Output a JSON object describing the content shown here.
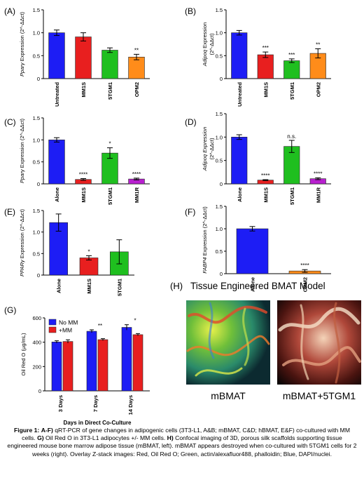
{
  "chart_data": [
    {
      "panel": "(A)",
      "type": "bar",
      "ylabel_pre": "",
      "ylabel_italic": "Pparγ",
      "ylabel_post": " Expression (2^-ΔΔct)",
      "ylim": [
        0,
        1.5
      ],
      "yticks": [
        0,
        0.5,
        1.0,
        1.5
      ],
      "categories": [
        "Untreated",
        "MM1S",
        "5TGM1",
        "OPM2"
      ],
      "values": [
        1.0,
        0.91,
        0.62,
        0.47
      ],
      "errors": [
        0.06,
        0.09,
        0.05,
        0.06
      ],
      "colors": [
        "#1d1df5",
        "#e81f1f",
        "#1fbf1f",
        "#ff8c1a"
      ],
      "significance": [
        "",
        "",
        "",
        "**"
      ]
    },
    {
      "panel": "(B)",
      "type": "bar",
      "ylabel_pre": "",
      "ylabel_italic": "Adipoq",
      "ylabel_post": " Expression",
      "ylabel2": "(2^-ΔΔct)",
      "ylim": [
        0,
        1.5
      ],
      "yticks": [
        0,
        0.5,
        1.0,
        1.5
      ],
      "categories": [
        "Untreated",
        "MM1S",
        "5TGM1",
        "OPM2"
      ],
      "values": [
        1.0,
        0.52,
        0.39,
        0.55
      ],
      "errors": [
        0.05,
        0.06,
        0.04,
        0.1
      ],
      "colors": [
        "#1d1df5",
        "#e81f1f",
        "#1fbf1f",
        "#ff8c1a"
      ],
      "significance": [
        "",
        "***",
        "***",
        "**"
      ]
    },
    {
      "panel": "(C)",
      "type": "bar",
      "ylabel_pre": "",
      "ylabel_italic": "Pparγ",
      "ylabel_post": " Expression (2^-ΔΔct)",
      "ylim": [
        0,
        1.5
      ],
      "yticks": [
        0,
        0.5,
        1.0,
        1.5
      ],
      "categories": [
        "Alone",
        "MM1S",
        "5TGM1",
        "MM1R"
      ],
      "values": [
        1.0,
        0.1,
        0.7,
        0.11
      ],
      "errors": [
        0.05,
        0.02,
        0.12,
        0.02
      ],
      "colors": [
        "#1d1df5",
        "#e81f1f",
        "#1fbf1f",
        "#b81fcf"
      ],
      "significance": [
        "",
        "****",
        "*",
        "****"
      ]
    },
    {
      "panel": "(D)",
      "type": "bar",
      "ylabel_pre": "",
      "ylabel_italic": "Adipoq Expression",
      "ylabel_post": "",
      "ylabel2": "(2^-ΔΔct)",
      "ylim": [
        0,
        1.5
      ],
      "yticks": [
        0,
        0.5,
        1.0,
        1.5
      ],
      "categories": [
        "Alone",
        "MM1S",
        "5TGM1",
        "MM1R"
      ],
      "values": [
        1.0,
        0.08,
        0.8,
        0.11
      ],
      "errors": [
        0.05,
        0.01,
        0.13,
        0.02
      ],
      "colors": [
        "#1d1df5",
        "#e81f1f",
        "#1fbf1f",
        "#b81fcf"
      ],
      "significance": [
        "",
        "****",
        "n.s.",
        "****"
      ]
    },
    {
      "panel": "(E)",
      "type": "bar",
      "ylabel_pre": "",
      "ylabel_italic": "PPARγ",
      "ylabel_post": " Expression (2^-ΔΔct)",
      "ylim": [
        0,
        1.5
      ],
      "yticks": [
        0,
        0.5,
        1.0,
        1.5
      ],
      "categories": [
        "Alone",
        "MM1S",
        "5TGM1"
      ],
      "values": [
        1.22,
        0.4,
        0.54
      ],
      "errors": [
        0.2,
        0.05,
        0.28
      ],
      "colors": [
        "#1d1df5",
        "#e81f1f",
        "#1fbf1f"
      ],
      "significance": [
        "",
        "*",
        ""
      ]
    },
    {
      "panel": "(F)",
      "type": "bar",
      "ylabel_pre": "",
      "ylabel_italic": "FABP4",
      "ylabel_post": " Expression (2^-ΔΔct)",
      "ylim": [
        0,
        1.5
      ],
      "yticks": [
        0,
        0.5,
        1.0,
        1.5
      ],
      "categories": [
        "Alone",
        "OPM2"
      ],
      "values": [
        1.0,
        0.06
      ],
      "errors": [
        0.05,
        0.03
      ],
      "colors": [
        "#1d1df5",
        "#ff8c1a"
      ],
      "significance": [
        "",
        "****"
      ]
    },
    {
      "panel": "(G)",
      "type": "bar",
      "ylabel": "Oil Red O (µg/mL)",
      "xlabel": "Days in Direct Co-Culture",
      "ylim": [
        0,
        600
      ],
      "yticks": [
        0,
        200,
        400,
        600
      ],
      "categories": [
        "3 Days",
        "7 Days",
        "14 Days"
      ],
      "series": [
        {
          "name": "No MM",
          "color": "#1d1df5",
          "values": [
            402,
            490,
            522
          ],
          "errors": [
            10,
            12,
            22
          ]
        },
        {
          "name": "+MM",
          "color": "#e81f1f",
          "values": [
            406,
            421,
            462
          ],
          "errors": [
            14,
            8,
            9
          ]
        }
      ],
      "significance": [
        "",
        "**",
        "*"
      ],
      "legend": "top-left"
    }
  ],
  "panel_h": {
    "label": "(H)",
    "title": "Tissue Engineered BMAT Model",
    "left_caption": "mBMAT",
    "right_caption": "mBMAT+5TGM1"
  },
  "caption": {
    "label": "Figure 1:",
    "range": "A-F)",
    "part1": " qRT-PCR of gene changes in adipogenic cells (3T3-L1, A&B; mBMAT, C&D; hBMAT, E&F) co-cultured with MM cells. ",
    "g_label": "G)",
    "g_text": " Oil Red O in  3T3-L1 adipocytes +/- MM cells. ",
    "h_label": "H)",
    "h_text": " Confocal imaging of 3D, porous silk scaffolds supporting tissue engineered mouse bone marrow  adipose tissue (mBMAT, left). mBMAT appears destroyed when co-cultured with 5TGM1 cells for 2 weeks (right). Overlay Z-stack images: Red, Oil Red O; Green,  actin/alexafluor488, phalloidin; Blue, DAPI/nuclei."
  }
}
